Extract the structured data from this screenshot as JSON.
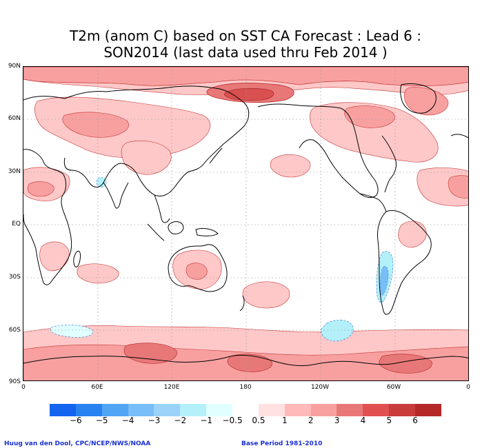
{
  "title": {
    "line1": "T2m (anom C) based on SST CA Forecast : Lead 6 :",
    "line2": "SON2014 (last data used thru Feb 2014 )"
  },
  "map": {
    "lat_labels": [
      "90N",
      "60N",
      "30N",
      "EQ",
      "30S",
      "60S",
      "90S"
    ],
    "lon_labels": [
      "0",
      "60E",
      "120E",
      "180",
      "120W",
      "60W",
      "0"
    ],
    "grid": true
  },
  "colorbar": {
    "colors": [
      "#1464f0",
      "#2882f0",
      "#50a5f5",
      "#78bef8",
      "#9bd3f8",
      "#b4f0fa",
      "#e1ffff",
      "#ffffff",
      "#ffe1e1",
      "#ffb9b9",
      "#f8a0a0",
      "#e87878",
      "#e05050",
      "#c83c3c",
      "#b42828"
    ],
    "labels": [
      "−6",
      "−5",
      "−4",
      "−3",
      "−2",
      "−1",
      "−0.5",
      "0.5",
      "1",
      "2",
      "3",
      "4",
      "5",
      "6"
    ]
  },
  "credits": {
    "left": "Huug van den Dool, CPC/NCEP/NWS/NOAA",
    "right": "Base Period 1981-2010"
  }
}
